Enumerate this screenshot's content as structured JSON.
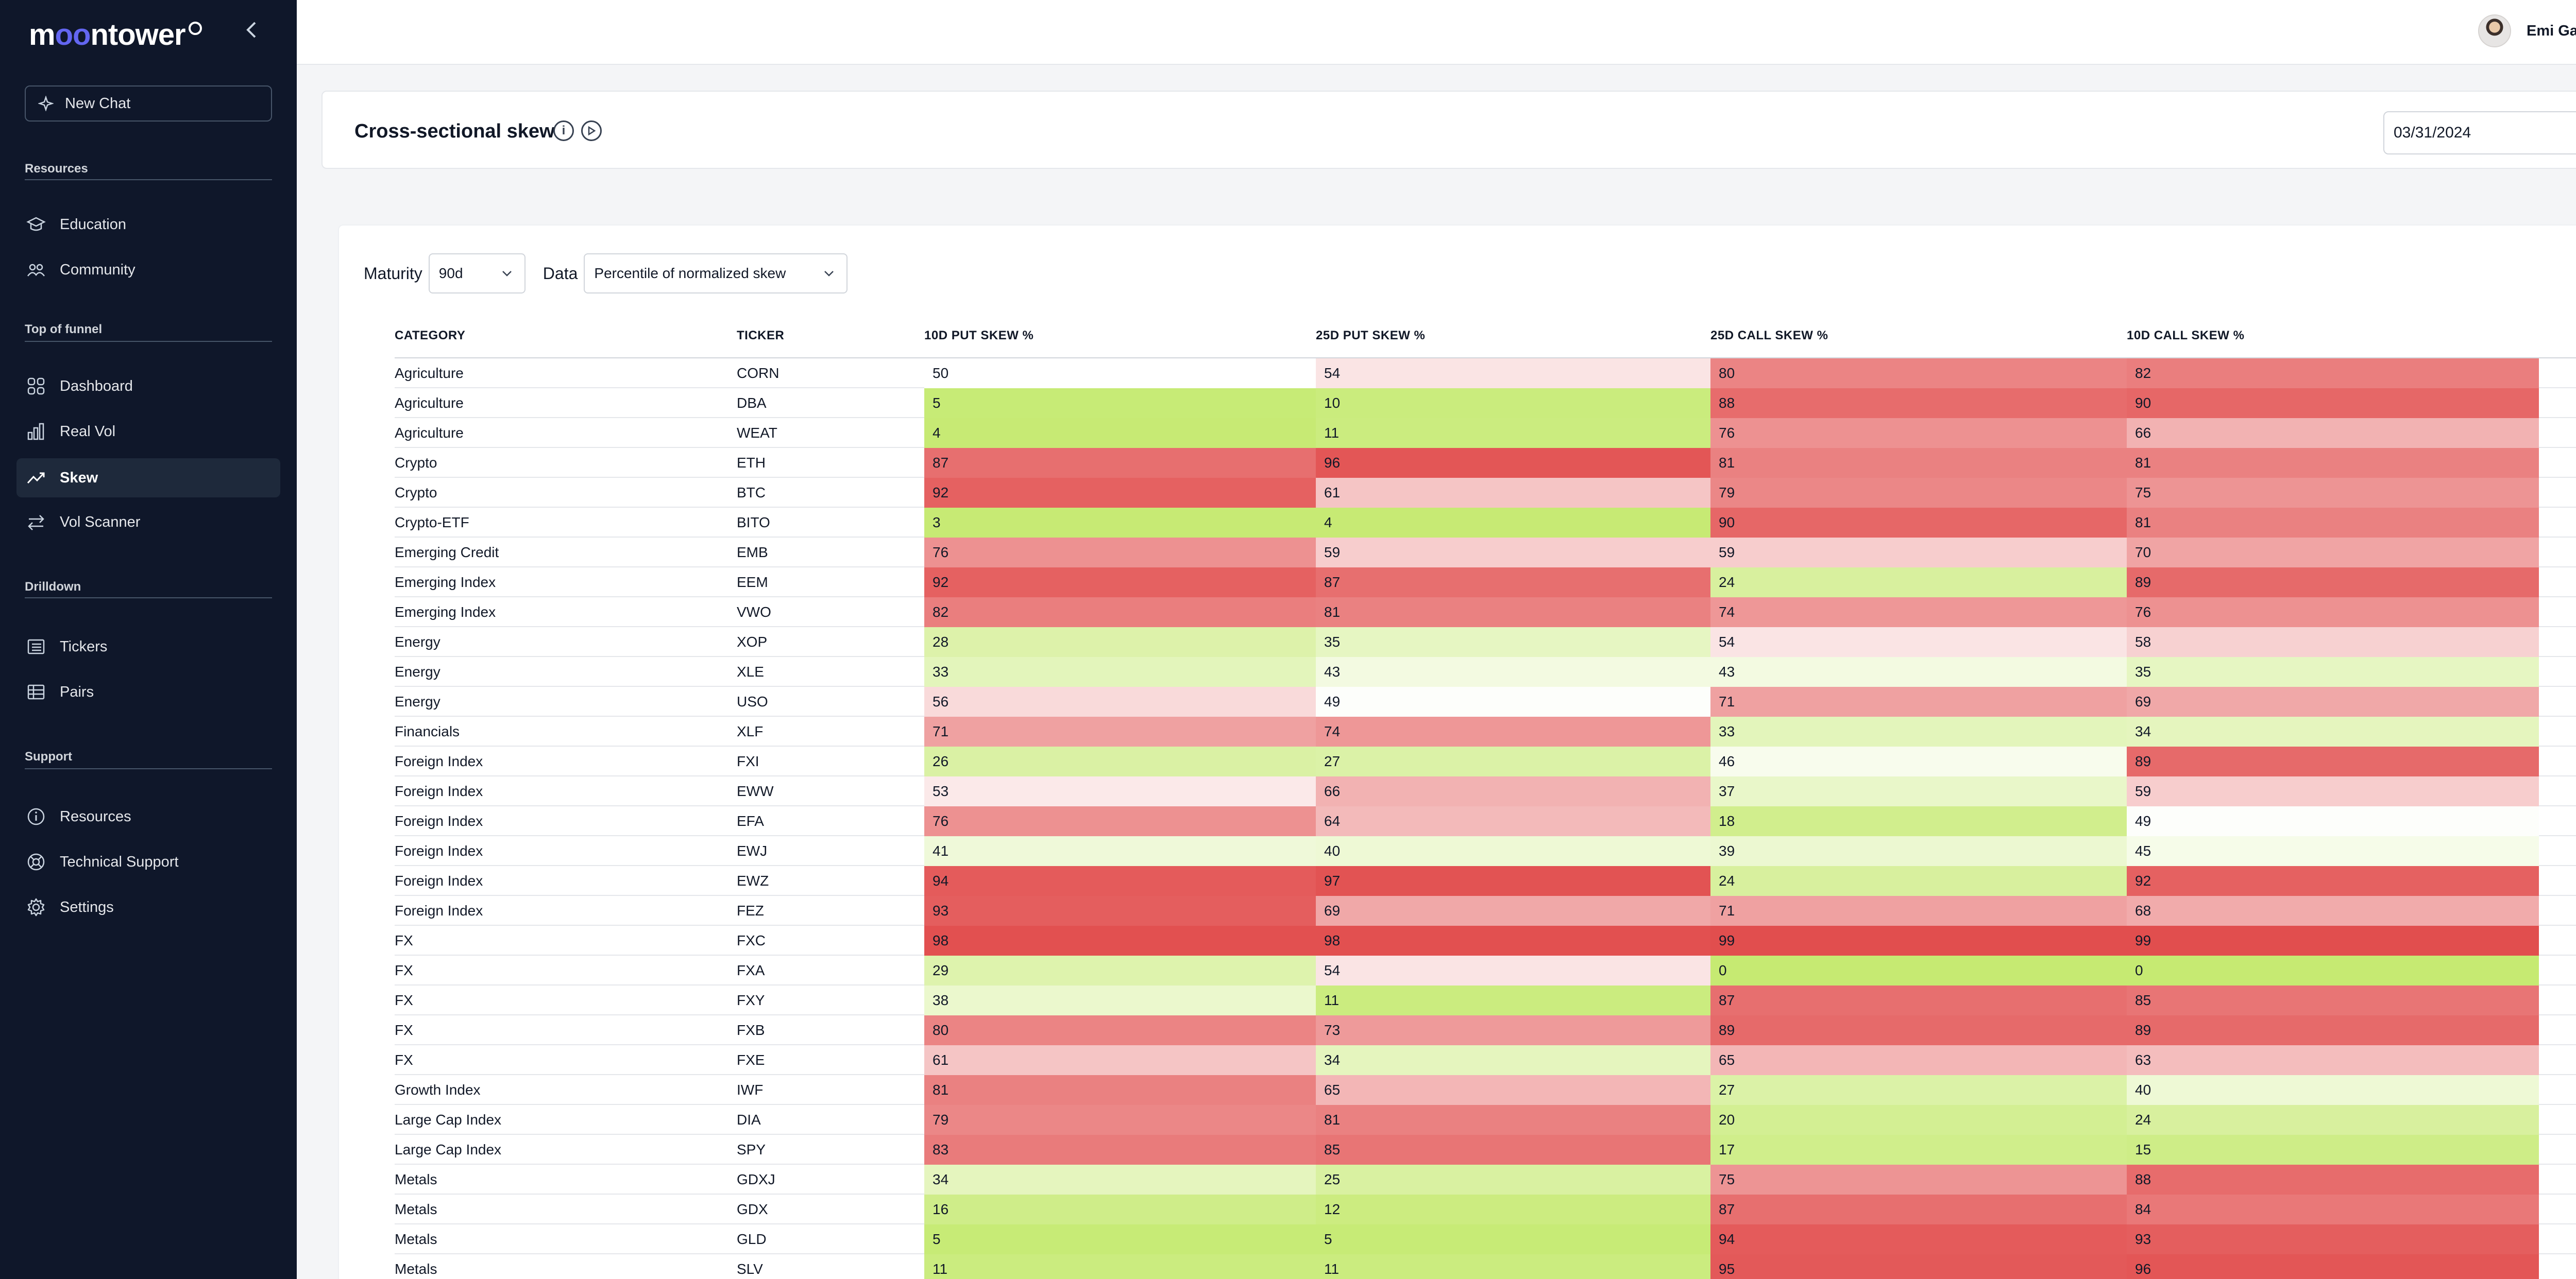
{
  "brand": {
    "name_part1": "m",
    "name_o1": "o",
    "name_o2": "o",
    "name_part2": "ntower"
  },
  "sidebar": {
    "new_chat": "New Chat",
    "sections": [
      {
        "title": "Resources",
        "items": [
          {
            "label": "Education",
            "icon": "graduation-cap-icon"
          },
          {
            "label": "Community",
            "icon": "community-icon"
          }
        ]
      },
      {
        "title": "Top of funnel",
        "items": [
          {
            "label": "Dashboard",
            "icon": "dashboard-icon"
          },
          {
            "label": "Real Vol",
            "icon": "bar-chart-icon"
          },
          {
            "label": "Skew",
            "icon": "trend-icon",
            "active": true
          },
          {
            "label": "Vol Scanner",
            "icon": "arrows-icon"
          }
        ]
      },
      {
        "title": "Drilldown",
        "items": [
          {
            "label": "Tickers",
            "icon": "list-icon"
          },
          {
            "label": "Pairs",
            "icon": "table-icon"
          }
        ]
      },
      {
        "title": "Support",
        "items": [
          {
            "label": "Resources",
            "icon": "info-icon"
          },
          {
            "label": "Technical Support",
            "icon": "support-icon"
          },
          {
            "label": "Settings",
            "icon": "gear-icon"
          }
        ]
      }
    ]
  },
  "user": {
    "name": "Emi Gal"
  },
  "header": {
    "title": "Cross-sectional skew",
    "date": "03/31/2024"
  },
  "filters": {
    "maturity_label": "Maturity",
    "maturity_value": "90d",
    "data_label": "Data",
    "data_value": "Percentile of normalized skew"
  },
  "table": {
    "columns": [
      "CATEGORY",
      "TICKER",
      "10D PUT SKEW %",
      "25D PUT SKEW %",
      "25D CALL SKEW %",
      "10D CALL SKEW %"
    ],
    "rows": [
      [
        "Agriculture",
        "CORN",
        50,
        54,
        80,
        82
      ],
      [
        "Agriculture",
        "DBA",
        5,
        10,
        88,
        90
      ],
      [
        "Agriculture",
        "WEAT",
        4,
        11,
        76,
        66
      ],
      [
        "Crypto",
        "ETH",
        87,
        96,
        81,
        81
      ],
      [
        "Crypto",
        "BTC",
        92,
        61,
        79,
        75
      ],
      [
        "Crypto-ETF",
        "BITO",
        3,
        4,
        90,
        81
      ],
      [
        "Emerging Credit",
        "EMB",
        76,
        59,
        59,
        70
      ],
      [
        "Emerging Index",
        "EEM",
        92,
        87,
        24,
        89
      ],
      [
        "Emerging Index",
        "VWO",
        82,
        81,
        74,
        76
      ],
      [
        "Energy",
        "XOP",
        28,
        35,
        54,
        58
      ],
      [
        "Energy",
        "XLE",
        33,
        43,
        43,
        35
      ],
      [
        "Energy",
        "USO",
        56,
        49,
        71,
        69
      ],
      [
        "Financials",
        "XLF",
        71,
        74,
        33,
        34
      ],
      [
        "Foreign Index",
        "FXI",
        26,
        27,
        46,
        89
      ],
      [
        "Foreign Index",
        "EWW",
        53,
        66,
        37,
        59
      ],
      [
        "Foreign Index",
        "EFA",
        76,
        64,
        18,
        49
      ],
      [
        "Foreign Index",
        "EWJ",
        41,
        40,
        39,
        45
      ],
      [
        "Foreign Index",
        "EWZ",
        94,
        97,
        24,
        92
      ],
      [
        "Foreign Index",
        "FEZ",
        93,
        69,
        71,
        68
      ],
      [
        "FX",
        "FXC",
        98,
        98,
        99,
        99
      ],
      [
        "FX",
        "FXA",
        29,
        54,
        0,
        0
      ],
      [
        "FX",
        "FXY",
        38,
        11,
        87,
        85
      ],
      [
        "FX",
        "FXB",
        80,
        73,
        89,
        89
      ],
      [
        "FX",
        "FXE",
        61,
        34,
        65,
        63
      ],
      [
        "Growth Index",
        "IWF",
        81,
        65,
        27,
        40
      ],
      [
        "Large Cap Index",
        "DIA",
        79,
        81,
        20,
        24
      ],
      [
        "Large Cap Index",
        "SPY",
        83,
        85,
        17,
        15
      ],
      [
        "Metals",
        "GDXJ",
        34,
        25,
        75,
        88
      ],
      [
        "Metals",
        "GDX",
        16,
        12,
        87,
        84
      ],
      [
        "Metals",
        "GLD",
        5,
        5,
        94,
        93
      ],
      [
        "Metals",
        "SLV",
        11,
        11,
        95,
        96
      ]
    ]
  },
  "colors": {
    "low": "#c6ea72",
    "mid": "#ffffff",
    "high": "#e14b4b",
    "sidebar_bg": "#0f172a",
    "accent": "#6366f1"
  }
}
